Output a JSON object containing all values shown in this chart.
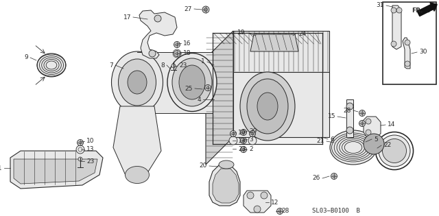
{
  "bg_color": "#ffffff",
  "line_color": "#2a2a2a",
  "fill_light": "#e8e8e8",
  "fill_mid": "#d0d0d0",
  "fill_dark": "#b0b0b0",
  "diagram_ref": "SL03−B0100  B",
  "figsize": [
    6.4,
    3.15
  ],
  "dpi": 100
}
